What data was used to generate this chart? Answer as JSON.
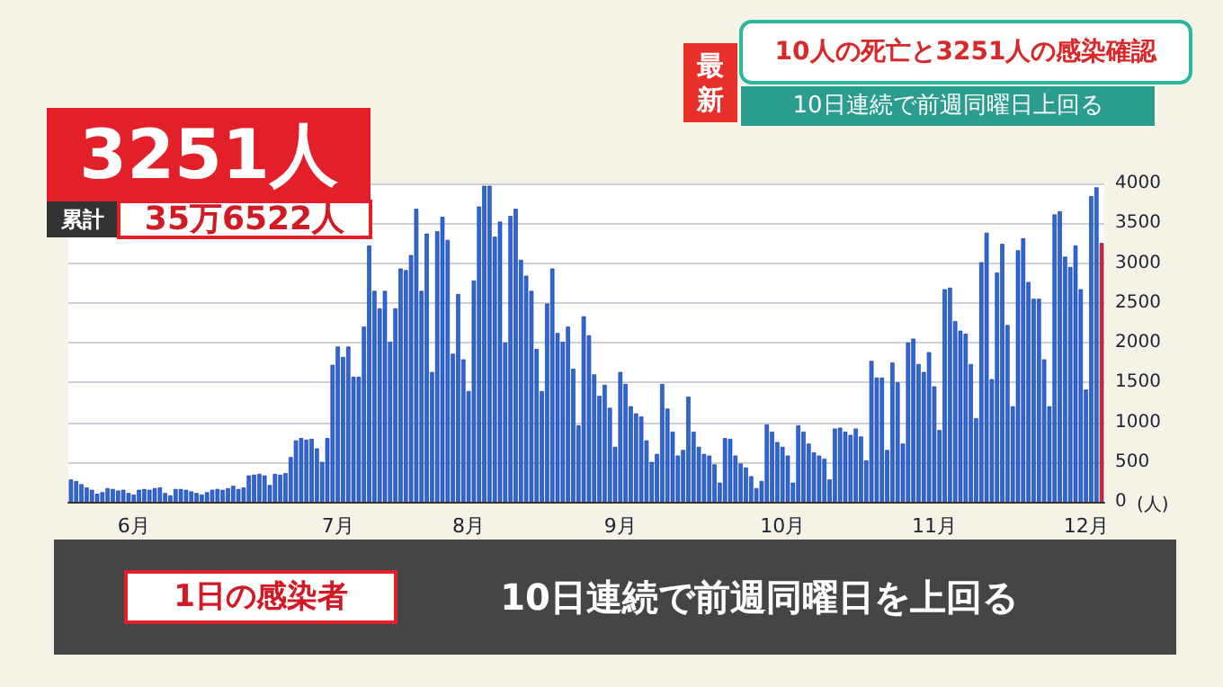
{
  "chart_data": {
    "type": "bar",
    "title": "10人の死亡と3251人の感染確認",
    "subtitle": "10日連続で前週同曜日上回る",
    "ylabel": "(人)",
    "annotations": [
      "最新",
      "3251人",
      "累計",
      "35万6522人",
      "1日の感染者",
      "10日連続で前週同曜日を上回る"
    ],
    "categories": [
      null,
      null,
      null,
      null,
      null,
      null,
      null,
      null,
      null,
      null,
      null,
      null,
      "6月",
      null,
      null,
      null,
      null,
      null,
      null,
      null,
      null,
      null,
      null,
      null,
      null,
      null,
      null,
      null,
      null,
      null,
      null,
      null,
      null,
      null,
      null,
      null,
      null,
      null,
      null,
      null,
      null,
      null,
      null,
      null,
      null,
      null,
      null,
      null,
      null,
      null,
      null,
      "7月",
      null,
      null,
      null,
      null,
      null,
      null,
      null,
      null,
      null,
      null,
      null,
      null,
      null,
      null,
      null,
      null,
      null,
      null,
      null,
      null,
      null,
      null,
      null,
      null,
      "8月",
      null,
      null,
      null,
      null,
      null,
      null,
      null,
      null,
      null,
      null,
      null,
      null,
      null,
      null,
      null,
      null,
      null,
      null,
      null,
      null,
      null,
      null,
      null,
      null,
      null,
      null,
      null,
      null,
      "9月",
      null,
      null,
      null,
      null,
      null,
      null,
      null,
      null,
      null,
      null,
      null,
      null,
      null,
      null,
      null,
      null,
      null,
      null,
      null,
      null,
      null,
      null,
      null,
      null,
      null,
      null,
      null,
      null,
      null,
      null,
      "10月",
      null,
      null,
      null,
      null,
      null,
      null,
      null,
      null,
      null,
      null,
      null,
      null,
      null,
      null,
      null,
      null,
      null,
      null,
      null,
      null,
      null,
      null,
      null,
      null,
      null,
      null,
      null,
      null,
      "11月",
      null,
      null,
      null,
      null,
      null,
      null,
      null,
      null,
      null,
      null,
      null,
      null,
      null,
      null,
      null,
      null,
      null,
      null,
      null,
      null,
      null,
      null,
      null,
      null,
      null,
      null,
      null,
      null,
      "12月",
      null,
      null,
      null
    ],
    "values": [
      280,
      260,
      220,
      180,
      150,
      100,
      120,
      170,
      160,
      140,
      150,
      110,
      90,
      150,
      160,
      150,
      170,
      180,
      110,
      80,
      160,
      160,
      150,
      130,
      110,
      90,
      120,
      150,
      160,
      150,
      170,
      200,
      160,
      180,
      330,
      340,
      350,
      330,
      210,
      350,
      340,
      360,
      560,
      770,
      800,
      780,
      790,
      670,
      500,
      800,
      1720,
      1950,
      1820,
      1950,
      1570,
      1570,
      2200,
      3220,
      2650,
      2430,
      2650,
      2010,
      2430,
      2930,
      2910,
      3100,
      3680,
      2650,
      3370,
      1630,
      3400,
      3580,
      3290,
      1860,
      2610,
      1790,
      1390,
      2780,
      3710,
      3970,
      3970,
      3330,
      3520,
      2000,
      3590,
      3680,
      3040,
      2840,
      2650,
      1920,
      1390,
      2490,
      2930,
      2120,
      2010,
      2200,
      1670,
      960,
      2330,
      2090,
      1600,
      1330,
      1470,
      1180,
      690,
      1630,
      1480,
      1200,
      1110,
      1070,
      770,
      500,
      600,
      1480,
      1170,
      880,
      580,
      650,
      1320,
      880,
      690,
      600,
      580,
      470,
      240,
      800,
      790,
      580,
      480,
      430,
      320,
      170,
      260,
      970,
      880,
      750,
      690,
      580,
      240,
      960,
      880,
      730,
      620,
      580,
      540,
      280,
      920,
      930,
      880,
      840,
      920,
      820,
      520,
      1770,
      1560,
      1560,
      650,
      1750,
      1500,
      730,
      2000,
      2050,
      1730,
      1630,
      1880,
      1450,
      900,
      2670,
      2690,
      2270,
      2150,
      2110,
      1730,
      1050,
      3010,
      3380,
      1540,
      2880,
      3240,
      2220,
      1200,
      3160,
      3310,
      2760,
      2550,
      2550,
      1790,
      1200,
      3610,
      3650,
      3080,
      2950,
      3220,
      2670,
      1410,
      3840,
      3950,
      3251
    ],
    "colors": [
      "#2a6ad8",
      "#2a6ad8",
      "#2a6ad8",
      "#2a6ad8",
      "#2a6ad8",
      "#2a6ad8",
      "#2a6ad8",
      "#2a6ad8",
      "#2a6ad8",
      "#2a6ad8",
      "#2a6ad8",
      "#2a6ad8",
      "#2a6ad8",
      "#2a6ad8",
      "#2a6ad8",
      "#2a6ad8",
      "#2a6ad8",
      "#2a6ad8",
      "#2a6ad8",
      "#2a6ad8",
      "#2a6ad8",
      "#2a6ad8",
      "#2a6ad8",
      "#2a6ad8",
      "#2a6ad8",
      "#2a6ad8",
      "#2a6ad8",
      "#2a6ad8",
      "#2a6ad8",
      "#2a6ad8",
      "#2a6ad8",
      "#2a6ad8",
      "#2a6ad8",
      "#2a6ad8",
      "#2a6ad8",
      "#2a6ad8",
      "#2a6ad8",
      "#2a6ad8",
      "#2a6ad8",
      "#2a6ad8",
      "#2a6ad8",
      "#2a6ad8",
      "#2a6ad8",
      "#2a6ad8",
      "#2a6ad8",
      "#2a6ad8",
      "#2a6ad8",
      "#2a6ad8",
      "#2a6ad8",
      "#2a6ad8",
      "#2a6ad8",
      "#2a6ad8",
      "#2a6ad8",
      "#2a6ad8",
      "#2a6ad8",
      "#2a6ad8",
      "#2a6ad8",
      "#2a6ad8",
      "#2a6ad8",
      "#2a6ad8",
      "#2a6ad8",
      "#2a6ad8",
      "#2a6ad8",
      "#2a6ad8",
      "#2a6ad8",
      "#2a6ad8",
      "#2a6ad8",
      "#2a6ad8",
      "#2a6ad8",
      "#2a6ad8",
      "#2a6ad8",
      "#2a6ad8",
      "#2a6ad8",
      "#2a6ad8",
      "#2a6ad8",
      "#2a6ad8",
      "#2a6ad8",
      "#2a6ad8",
      "#2a6ad8",
      "#2a6ad8",
      "#2a6ad8",
      "#2a6ad8",
      "#2a6ad8",
      "#2a6ad8",
      "#2a6ad8",
      "#2a6ad8",
      "#2a6ad8",
      "#2a6ad8",
      "#2a6ad8",
      "#2a6ad8",
      "#2a6ad8",
      "#2a6ad8",
      "#2a6ad8",
      "#2a6ad8",
      "#2a6ad8",
      "#2a6ad8",
      "#2a6ad8",
      "#2a6ad8",
      "#2a6ad8",
      "#2a6ad8",
      "#2a6ad8",
      "#2a6ad8",
      "#2a6ad8",
      "#2a6ad8",
      "#2a6ad8",
      "#2a6ad8",
      "#2a6ad8",
      "#2a6ad8",
      "#2a6ad8",
      "#2a6ad8",
      "#2a6ad8",
      "#2a6ad8",
      "#2a6ad8",
      "#2a6ad8",
      "#2a6ad8",
      "#2a6ad8",
      "#2a6ad8",
      "#2a6ad8",
      "#2a6ad8",
      "#2a6ad8",
      "#2a6ad8",
      "#2a6ad8",
      "#2a6ad8",
      "#2a6ad8",
      "#2a6ad8",
      "#2a6ad8",
      "#2a6ad8",
      "#2a6ad8",
      "#2a6ad8",
      "#2a6ad8",
      "#2a6ad8",
      "#2a6ad8",
      "#2a6ad8",
      "#2a6ad8",
      "#2a6ad8",
      "#2a6ad8",
      "#2a6ad8",
      "#2a6ad8",
      "#2a6ad8",
      "#2a6ad8",
      "#2a6ad8",
      "#2a6ad8",
      "#2a6ad8",
      "#2a6ad8",
      "#2a6ad8",
      "#2a6ad8",
      "#2a6ad8",
      "#2a6ad8",
      "#2a6ad8",
      "#2a6ad8",
      "#2a6ad8",
      "#2a6ad8",
      "#2a6ad8",
      "#2a6ad8",
      "#2a6ad8",
      "#2a6ad8",
      "#2a6ad8",
      "#2a6ad8",
      "#2a6ad8",
      "#2a6ad8",
      "#2a6ad8",
      "#2a6ad8",
      "#2a6ad8",
      "#2a6ad8",
      "#2a6ad8",
      "#2a6ad8",
      "#2a6ad8",
      "#2a6ad8",
      "#2a6ad8",
      "#2a6ad8",
      "#2a6ad8",
      "#2a6ad8",
      "#2a6ad8",
      "#2a6ad8",
      "#2a6ad8",
      "#2a6ad8",
      "#2a6ad8",
      "#2a6ad8",
      "#2a6ad8",
      "#2a6ad8",
      "#2a6ad8",
      "#2a6ad8",
      "#2a6ad8",
      "#2a6ad8",
      "#2a6ad8",
      "#2a6ad8",
      "#2a6ad8",
      "#2a6ad8",
      "#2a6ad8",
      "#2a6ad8",
      "#2a6ad8",
      "#2a6ad8",
      "#2a6ad8",
      "#2a6ad8",
      "#2a6ad8",
      "#2a6ad8",
      "#2a6ad8",
      "#e8202a"
    ],
    "ylim": [
      0,
      4000
    ],
    "yticks": [
      0,
      500,
      1000,
      1500,
      2000,
      2500,
      3000,
      3500,
      4000
    ],
    "grid": "y"
  }
}
